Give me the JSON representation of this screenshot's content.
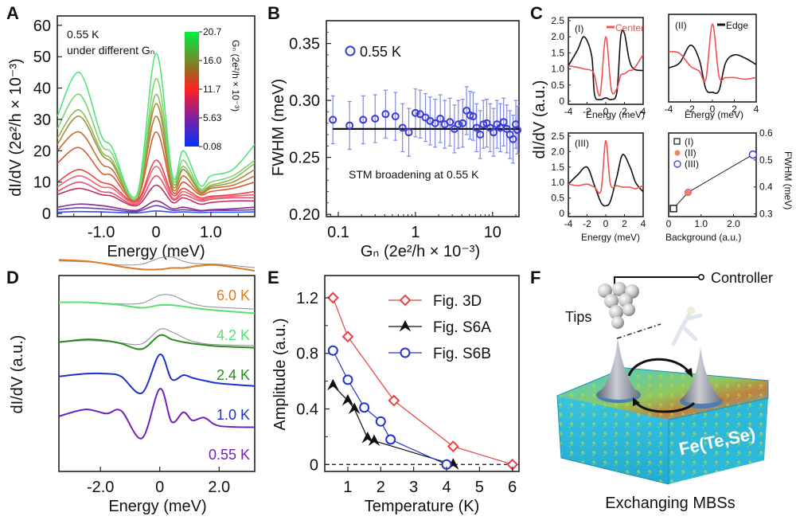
{
  "figure": {
    "panel_labels": [
      "A",
      "B",
      "C",
      "D",
      "E",
      "F"
    ]
  },
  "chart_data": [
    {
      "id": "A",
      "type": "line",
      "title": "",
      "annotation": [
        "0.55 K",
        "under different Gₙ"
      ],
      "xlabel": "Energy  (meV)",
      "ylabel": "dI/dV  (2e²/h × 10⁻³)",
      "xlim": [
        -1.8,
        1.8
      ],
      "ylim": [
        -1,
        63
      ],
      "xticks": [
        -1.0,
        0,
        1.0
      ],
      "xtick_labels": [
        "-1.0",
        "0",
        "1.0"
      ],
      "yticks": [
        0,
        10,
        20,
        30,
        40,
        50,
        60
      ],
      "ytick_labels": [
        "0",
        "10",
        "20",
        "30",
        "40",
        "50",
        "60"
      ],
      "colorbar": {
        "label": "Gₙ (2e²/h × 10⁻³)",
        "ticks": [
          "20.7",
          "16.0",
          "11.7",
          "5.63",
          "0.08"
        ],
        "colors": [
          "#00ee44",
          "#887722",
          "#ff2020",
          "#8020a0",
          "#0033ff"
        ]
      },
      "x": [
        -1.8,
        -1.4,
        -1.0,
        -0.8,
        -0.35,
        0,
        0.3,
        0.5,
        0.8,
        1.0,
        1.4,
        1.8
      ],
      "series": [
        {
          "name": "G_N 20.7",
          "color": "#55e27a",
          "values": [
            31,
            45,
            25,
            21,
            6,
            51,
            12,
            20,
            9,
            12,
            14,
            22
          ]
        },
        {
          "name": "G_N 19",
          "color": "#7ad66e",
          "values": [
            27,
            38,
            22,
            19,
            5,
            43,
            11,
            17,
            8,
            10,
            12,
            17
          ]
        },
        {
          "name": "G_N 17",
          "color": "#8cba55",
          "values": [
            24,
            33,
            20,
            17,
            5,
            38,
            10,
            15,
            7.5,
            9,
            11,
            16
          ]
        },
        {
          "name": "G_N 16",
          "color": "#a0903a",
          "values": [
            22,
            31,
            19,
            16,
            5,
            35,
            9,
            14,
            7,
            8.5,
            10,
            14
          ]
        },
        {
          "name": "G_N 14",
          "color": "#c07030",
          "values": [
            20,
            26,
            16,
            14,
            5,
            31,
            8,
            12,
            6.5,
            8,
            9,
            12
          ]
        },
        {
          "name": "G_N 12.5",
          "color": "#d85a38",
          "values": [
            16,
            21,
            13,
            12,
            4.5,
            26,
            7,
            10,
            6,
            7,
            8,
            10
          ]
        },
        {
          "name": "G_N 11.7",
          "color": "#ee4040",
          "values": [
            10,
            14,
            10,
            9,
            4,
            17,
            6,
            8,
            5,
            5.5,
            6,
            7
          ]
        },
        {
          "name": "G_N 10",
          "color": "#f06070",
          "values": [
            8.5,
            12,
            8.5,
            8,
            3.5,
            15,
            5,
            7,
            4.5,
            5,
            5.5,
            6
          ]
        },
        {
          "name": "G_N 9",
          "color": "#e05070",
          "values": [
            7,
            10,
            7,
            6.5,
            3,
            12,
            4.5,
            6,
            4,
            4.5,
            5,
            5
          ]
        },
        {
          "name": "G_N 8",
          "color": "#c03060",
          "values": [
            6,
            8,
            6,
            5.5,
            2.5,
            9,
            3.5,
            5,
            3,
            3.5,
            4,
            4
          ]
        },
        {
          "name": "G_N 5.63",
          "color": "#8a2a8a",
          "values": [
            2,
            3,
            2.5,
            2,
            1,
            4,
            1.5,
            2,
            1,
            1.2,
            1.5,
            2
          ]
        },
        {
          "name": "G_N 3",
          "color": "#6040c0",
          "values": [
            1.2,
            1.8,
            1.5,
            1.2,
            0.6,
            2.5,
            1,
            1.2,
            0.8,
            1,
            1,
            1.2
          ]
        },
        {
          "name": "G_N 0.08",
          "color": "#3050f0",
          "values": [
            0.4,
            0.6,
            0.5,
            0.4,
            0.2,
            0.8,
            0.4,
            0.5,
            0.3,
            0.4,
            0.4,
            0.5
          ]
        }
      ]
    },
    {
      "id": "B",
      "type": "scatter",
      "xscale": "log",
      "xlabel": "Gₙ (2e²/h × 10⁻³)",
      "ylabel": "FWHM (meV)",
      "xlim": [
        0.07,
        22
      ],
      "ylim": [
        0.198,
        0.37
      ],
      "xticks": [
        0.1,
        1,
        10
      ],
      "xtick_labels": [
        "0.1",
        "1",
        "10"
      ],
      "yticks": [
        0.2,
        0.25,
        0.3,
        0.35
      ],
      "ytick_labels": [
        "0.20",
        "0.25",
        "0.30",
        "0.35"
      ],
      "legend": "0.55 K",
      "legend_position": "top-left",
      "annotation": "STM broadening  at 0.55 K",
      "reference_line": 0.275,
      "marker_color": "#3a3ad8",
      "errorbar_color": "#7f8be0",
      "points": [
        {
          "x": 0.085,
          "y": 0.283
        },
        {
          "x": 0.14,
          "y": 0.278
        },
        {
          "x": 0.21,
          "y": 0.283
        },
        {
          "x": 0.3,
          "y": 0.284
        },
        {
          "x": 0.41,
          "y": 0.288
        },
        {
          "x": 0.55,
          "y": 0.286
        },
        {
          "x": 0.68,
          "y": 0.276
        },
        {
          "x": 0.82,
          "y": 0.272
        },
        {
          "x": 1.0,
          "y": 0.289
        },
        {
          "x": 1.15,
          "y": 0.288
        },
        {
          "x": 1.35,
          "y": 0.285
        },
        {
          "x": 1.55,
          "y": 0.282
        },
        {
          "x": 1.8,
          "y": 0.28
        },
        {
          "x": 2.1,
          "y": 0.284
        },
        {
          "x": 2.4,
          "y": 0.279
        },
        {
          "x": 2.8,
          "y": 0.281
        },
        {
          "x": 3.2,
          "y": 0.275
        },
        {
          "x": 3.6,
          "y": 0.279
        },
        {
          "x": 4.1,
          "y": 0.28
        },
        {
          "x": 4.6,
          "y": 0.291
        },
        {
          "x": 5.1,
          "y": 0.287
        },
        {
          "x": 5.6,
          "y": 0.286
        },
        {
          "x": 6.2,
          "y": 0.276
        },
        {
          "x": 6.9,
          "y": 0.27
        },
        {
          "x": 7.6,
          "y": 0.279
        },
        {
          "x": 8.4,
          "y": 0.28
        },
        {
          "x": 9.3,
          "y": 0.276
        },
        {
          "x": 10.3,
          "y": 0.272
        },
        {
          "x": 11.4,
          "y": 0.279
        },
        {
          "x": 12.6,
          "y": 0.276
        },
        {
          "x": 13.9,
          "y": 0.281
        },
        {
          "x": 15.3,
          "y": 0.275
        },
        {
          "x": 16.8,
          "y": 0.27
        },
        {
          "x": 18.4,
          "y": 0.266
        },
        {
          "x": 20.0,
          "y": 0.279
        },
        {
          "x": 21.0,
          "y": 0.274
        }
      ],
      "errorbar_halfwidth": 0.021
    },
    {
      "id": "C-i",
      "type": "line",
      "subplot_label": "(I)",
      "legend": "Center",
      "xlabel": "Energy (meV)",
      "ylabel": "dI/dV  (a.u.)",
      "xlim": [
        -4,
        4
      ],
      "ylim": [
        -0.1,
        2.6
      ],
      "xticks": [
        -4,
        -2,
        0,
        2,
        4
      ],
      "xtick_labels": [
        "-4",
        "-2",
        "0",
        "2",
        "4"
      ],
      "yticks": [
        0,
        0.5,
        1.0,
        1.5,
        2.0,
        2.5
      ],
      "ytick_labels": [
        "0",
        "0.5",
        "1.0",
        "1.5",
        "2.0",
        "2.5"
      ],
      "x": [
        -4,
        -3,
        -2.3,
        -1.5,
        -1.2,
        -0.6,
        0,
        0.6,
        1.2,
        1.6,
        2.0,
        2.5,
        3.0,
        4.0
      ],
      "series": [
        {
          "name": "Edge",
          "color": "#111111",
          "values": [
            1.1,
            1.6,
            2.0,
            1.4,
            0.2,
            0.05,
            0.1,
            0.05,
            0.3,
            2.0,
            2.1,
            1.3,
            1.0,
            0.95
          ]
        },
        {
          "name": "Center",
          "color": "#f05050",
          "values": [
            1.1,
            1.05,
            1.0,
            0.95,
            0.8,
            0.2,
            2.0,
            0.35,
            0.4,
            0.8,
            0.85,
            0.95,
            1.0,
            1.45
          ]
        }
      ]
    },
    {
      "id": "C-ii",
      "type": "line",
      "subplot_label": "(II)",
      "legend": "Edge",
      "xlabel": "Energy (meV)",
      "xlim": [
        -4,
        4
      ],
      "ylim": [
        -0.1,
        2.6
      ],
      "xticks": [
        -4,
        -2,
        0,
        2,
        4
      ],
      "xtick_labels": [
        "-4",
        "-2",
        "0",
        "2",
        "4"
      ],
      "x": [
        -4,
        -3,
        -2,
        -1.2,
        -0.6,
        0,
        0.6,
        1.2,
        2,
        3,
        4
      ],
      "series": [
        {
          "name": "Edge",
          "color": "#111111",
          "values": [
            0.95,
            1.1,
            1.65,
            1.2,
            0.3,
            0.2,
            0.25,
            1.1,
            1.35,
            1.25,
            1.05
          ]
        },
        {
          "name": "Center",
          "color": "#f05050",
          "values": [
            1.45,
            1.4,
            1.0,
            0.85,
            0.6,
            2.3,
            0.7,
            0.65,
            0.65,
            0.6,
            0.65
          ]
        }
      ]
    },
    {
      "id": "C-iii",
      "type": "line",
      "subplot_label": "(III)",
      "xlabel": "Energy (meV)",
      "xlim": [
        -4,
        4
      ],
      "ylim": [
        -0.1,
        2.6
      ],
      "xticks": [
        -4,
        -2,
        0,
        2,
        4
      ],
      "xtick_labels": [
        "-4",
        "-2",
        "0",
        "2",
        "4"
      ],
      "yticks": [
        0,
        0.5,
        1.0,
        1.5,
        2.0,
        2.5
      ],
      "ytick_labels": [
        "0",
        "0.5",
        "1.0",
        "1.5",
        "2.0",
        "2.5"
      ],
      "x": [
        -4,
        -3,
        -2,
        -1.2,
        -0.5,
        0,
        0.5,
        1.2,
        1.8,
        2.6,
        3.2,
        4
      ],
      "series": [
        {
          "name": "Edge",
          "color": "#111111",
          "values": [
            0.95,
            1.25,
            1.5,
            0.9,
            0.35,
            0.25,
            0.4,
            1.2,
            1.9,
            1.5,
            1.0,
            0.7
          ]
        },
        {
          "name": "Center",
          "color": "#f05050",
          "values": [
            0.95,
            0.9,
            0.95,
            0.85,
            0.75,
            2.35,
            0.95,
            0.9,
            0.85,
            0.85,
            0.8,
            0.9
          ]
        }
      ]
    },
    {
      "id": "C-iv",
      "type": "scatter",
      "xlabel": "Background (a.u.)",
      "ylabel": "FWHM (meV)",
      "xlim": [
        0,
        2.7
      ],
      "ylim": [
        0.29,
        0.6
      ],
      "xticks": [
        0,
        1.0,
        2.0
      ],
      "xtick_labels": [
        "0",
        "1.0",
        "2.0"
      ],
      "yticks": [
        0.3,
        0.4,
        0.5,
        0.6
      ],
      "ytick_labels": [
        "0.3",
        "0.4",
        "0.5",
        "0.6"
      ],
      "legend": [
        "(I)",
        "(II)",
        "(III)"
      ],
      "points": [
        {
          "label": "(I)",
          "x": 0.15,
          "y": 0.32,
          "marker": "square",
          "color": "#222222"
        },
        {
          "label": "(II)",
          "x": 0.6,
          "y": 0.38,
          "marker": "diamond",
          "color": "#f08070"
        },
        {
          "label": "(III)",
          "x": 2.6,
          "y": 0.52,
          "marker": "circle",
          "color": "#3a3ad8"
        }
      ]
    },
    {
      "id": "D",
      "type": "line",
      "xlabel": "Energy  (meV)",
      "ylabel": "dI/dV  (a.u.)",
      "xlim": [
        -3.4,
        3.2
      ],
      "xticks": [
        -2.0,
        0,
        2.0
      ],
      "xtick_labels": [
        "-2.0",
        "0",
        "2.0"
      ],
      "x": [
        -3.4,
        -2.5,
        -1.8,
        -1.3,
        -0.6,
        0,
        0.4,
        0.8,
        1.1,
        1.5,
        2.0,
        3.2
      ],
      "series": [
        {
          "name": "6.0 K",
          "color": "#e07a20",
          "offset": 4.0,
          "values": [
            0.4,
            0.35,
            0.25,
            0.15,
            0.05,
            0.05,
            0.1,
            0.1,
            0.15,
            0.2,
            0.2,
            0.0
          ]
        },
        {
          "name": "4.2 K",
          "color": "#55e070",
          "offset": 3.0,
          "values": [
            0.3,
            0.3,
            0.25,
            0.2,
            0.1,
            0.2,
            0.2,
            0.15,
            0.1,
            0.05,
            0.0,
            -0.1
          ]
        },
        {
          "name": "2.4 K",
          "color": "#2a8a20",
          "offset": 2.0,
          "values": [
            0.3,
            0.4,
            0.35,
            0.25,
            0.05,
            0.55,
            0.4,
            0.3,
            0.25,
            0.2,
            0.15,
            0.1
          ]
        },
        {
          "name": "1.0 K",
          "color": "#2030d0",
          "offset": 1.0,
          "values": [
            0.5,
            0.6,
            0.6,
            0.5,
            -0.1,
            1.3,
            0.4,
            0.55,
            0.45,
            0.35,
            0.25,
            0.15
          ]
        },
        {
          "name": "0.55 K",
          "color": "#7020c0",
          "offset": 0.0,
          "values": [
            0.5,
            0.75,
            0.6,
            0.7,
            -0.3,
            1.5,
            0.3,
            0.65,
            0.35,
            0.45,
            0.15,
            0.1
          ]
        }
      ],
      "fit_color": "#8a8a9a"
    },
    {
      "id": "E",
      "type": "line",
      "xlabel": "Temperature  (K)",
      "ylabel": "Amplitude  (a.u.)",
      "xlim": [
        0.3,
        6.2
      ],
      "ylim": [
        -0.05,
        1.36
      ],
      "xticks": [
        1,
        2,
        3,
        4,
        5,
        6
      ],
      "xtick_labels": [
        "1",
        "2",
        "3",
        "4",
        "5",
        "6"
      ],
      "yticks": [
        0,
        0.4,
        0.8,
        1.2
      ],
      "ytick_labels": [
        "0",
        "0.4",
        "0.8",
        "1.2"
      ],
      "zero_line": true,
      "legend_position": "top-right",
      "series": [
        {
          "name": "Fig. 3D",
          "color": "#e84040",
          "marker": "diamond",
          "x": [
            0.55,
            1.0,
            2.4,
            4.2,
            6.0
          ],
          "values": [
            1.2,
            0.92,
            0.46,
            0.13,
            0.0
          ]
        },
        {
          "name": "Fig. S6A",
          "color": "#111111",
          "marker": "triangle",
          "x": [
            0.55,
            1.0,
            1.2,
            1.6,
            1.8,
            4.2
          ],
          "values": [
            0.57,
            0.46,
            0.4,
            0.19,
            0.17,
            0.0
          ]
        },
        {
          "name": "Fig. S6B",
          "color": "#2233cc",
          "marker": "circle",
          "x": [
            0.55,
            1.0,
            1.5,
            2.0,
            2.3,
            4.0
          ],
          "values": [
            0.82,
            0.61,
            0.41,
            0.31,
            0.18,
            0.0
          ]
        }
      ]
    }
  ],
  "illustration_F": {
    "labels": {
      "controller": "Controller",
      "tips": "Tips",
      "material": "Fe(Te,Se)",
      "caption": "Exchanging  MBSs"
    },
    "colors": {
      "substrate": "#2fc8dc",
      "substrate_dark": "#1a9fc0",
      "cone": "#8a8f9a",
      "arrow": "#111111",
      "tip_sphere": "#d6d6d6"
    }
  }
}
